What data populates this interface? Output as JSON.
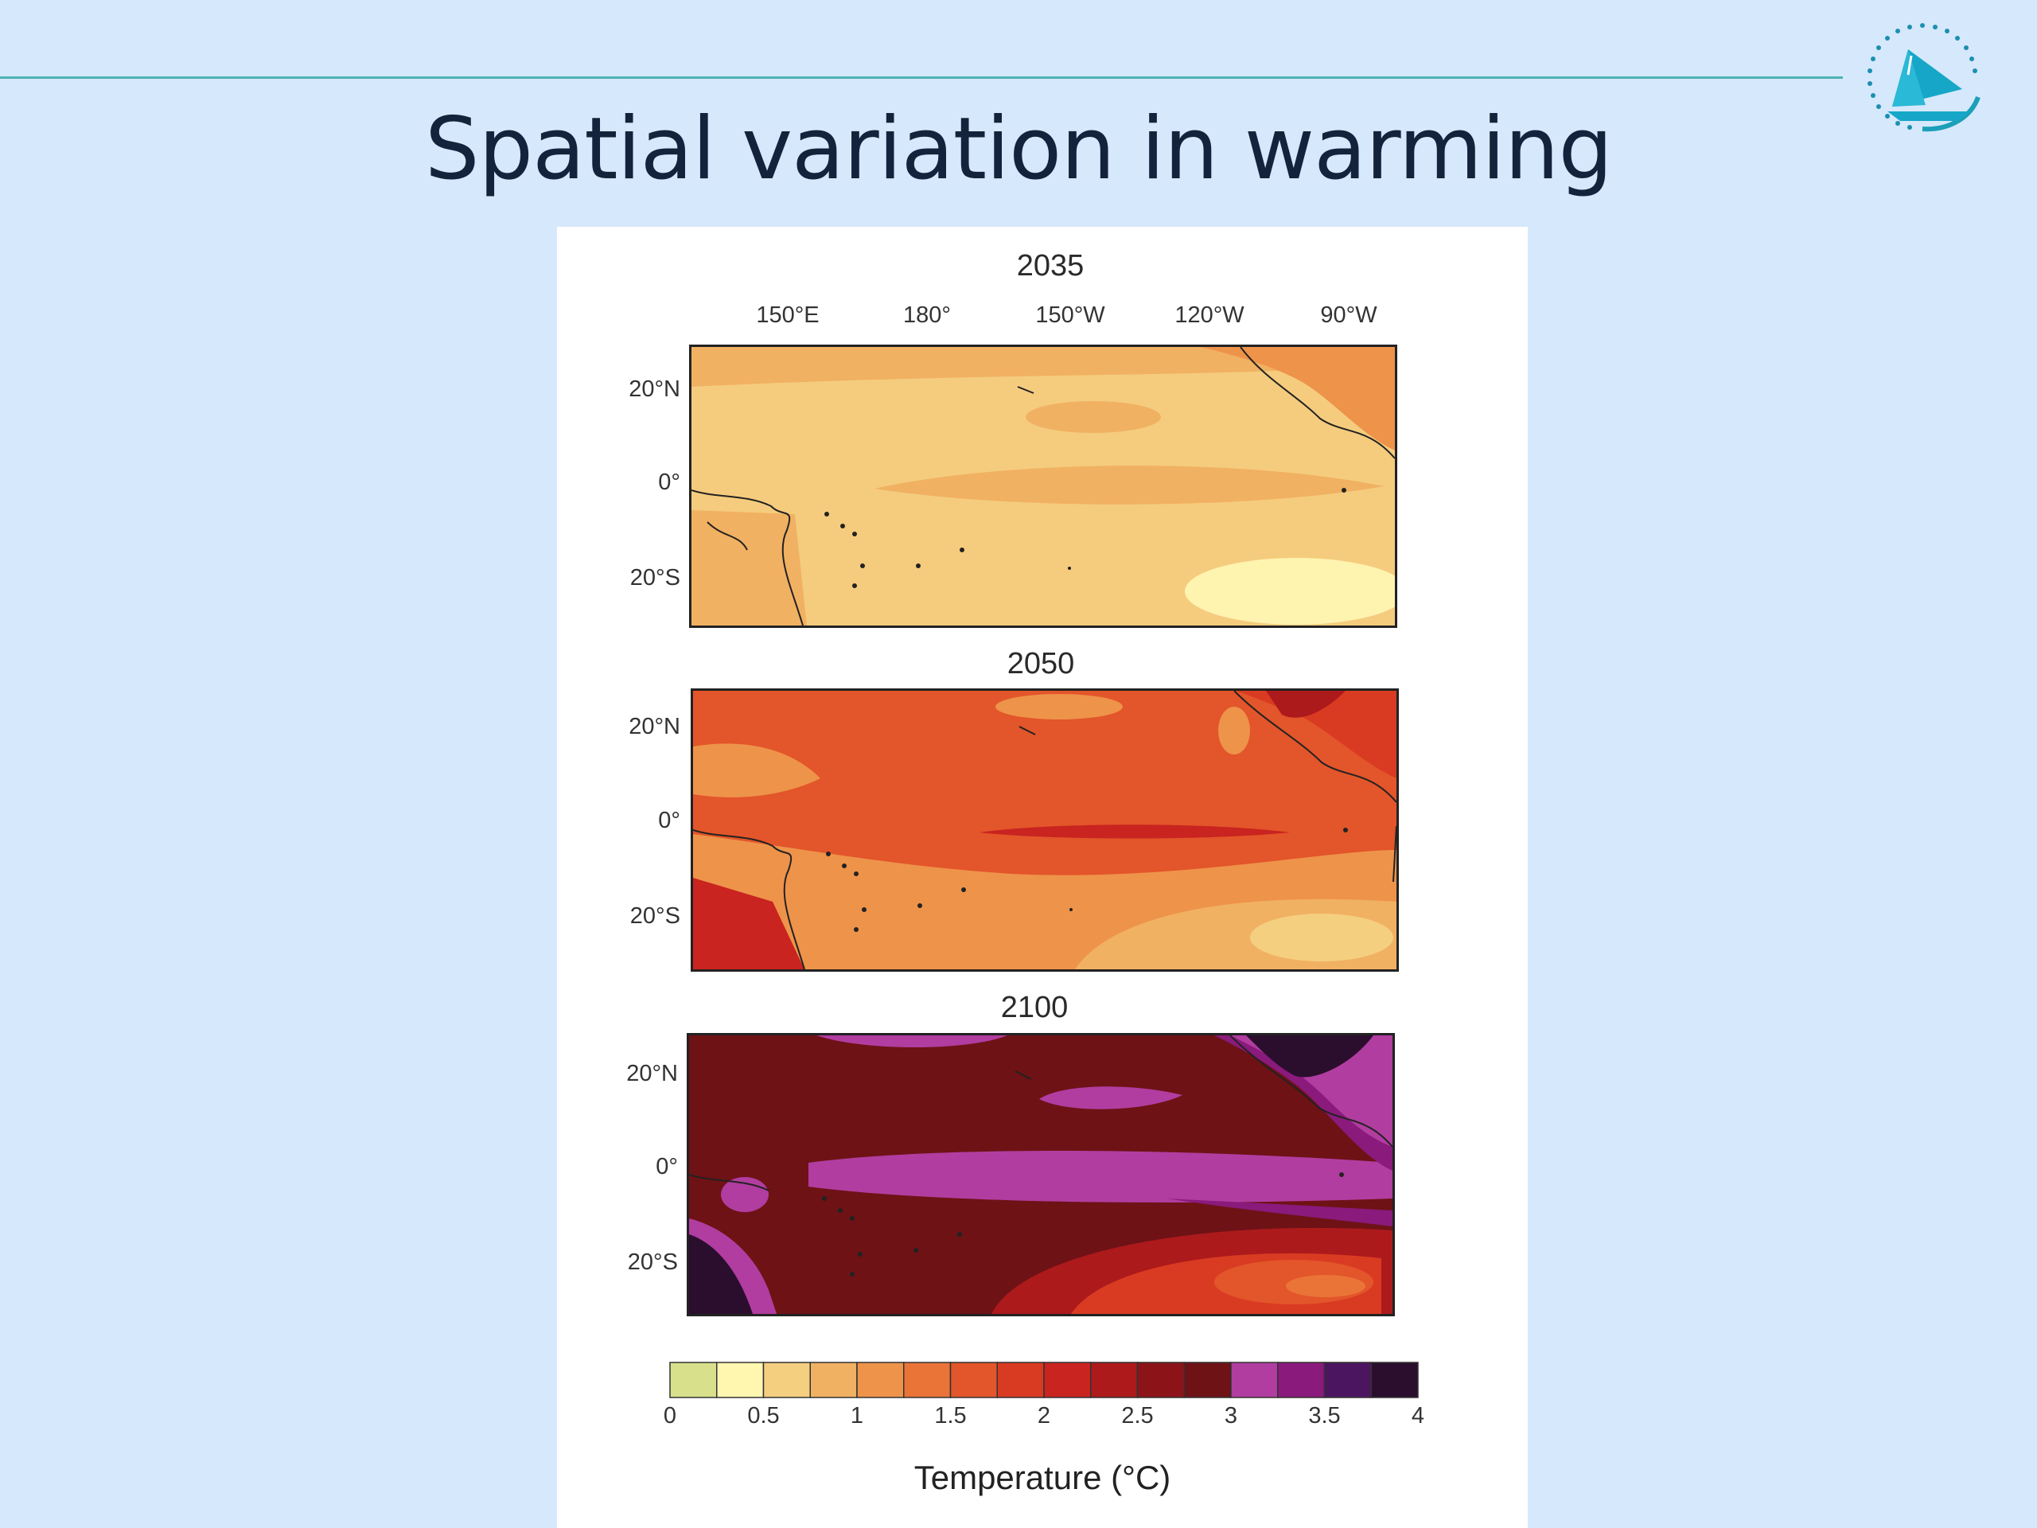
{
  "slide": {
    "title": "Spatial variation in warming",
    "rule_color": "#4fb3b5",
    "logo_icon": "sail-boat-logo-icon"
  },
  "figure": {
    "longitude_labels": [
      "150°E",
      "180°",
      "150°W",
      "120°W",
      "90°W"
    ],
    "latitude_labels": [
      "20°N",
      "0°",
      "20°S"
    ],
    "panels": [
      {
        "year": "2035"
      },
      {
        "year": "2050"
      },
      {
        "year": "2100"
      }
    ],
    "colorbar": {
      "title": "Temperature (°C)",
      "min": 0,
      "max": 4,
      "step": 0.25,
      "tick_labels": [
        "0",
        "0.5",
        "1",
        "1.5",
        "2",
        "2.5",
        "3",
        "3.5",
        "4"
      ],
      "colors": [
        "#d9e08c",
        "#fff6b0",
        "#f5cf80",
        "#f1b162",
        "#ee934a",
        "#ea7438",
        "#e3552a",
        "#d93b22",
        "#c92420",
        "#ad1a1c",
        "#8c1418",
        "#6e1216",
        "#b13da0",
        "#8a1a7c",
        "#4b1560",
        "#2b0e2e"
      ]
    }
  }
}
